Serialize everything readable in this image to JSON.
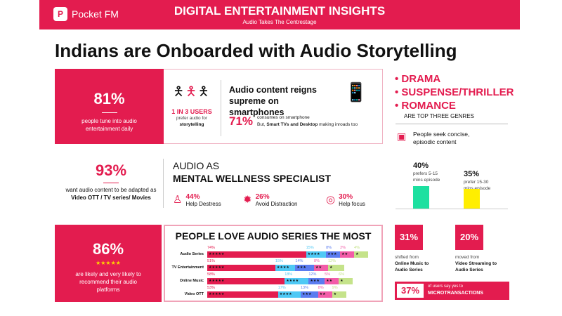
{
  "header": {
    "brand": "Pocket FM",
    "title": "DIGITAL ENTERTAINMENT INSIGHTS",
    "subtitle": "Audio Takes The Centrestage"
  },
  "page_title": "Indians are Onboarded with Audio Storytelling",
  "stat_daily": {
    "value": "81%",
    "text": "people tune into audio entertainment daily"
  },
  "users": {
    "value": "1 IN 3 USERS",
    "text1": "prefer audio for",
    "text2": "storytelling"
  },
  "smartphone": {
    "heading": "Audio content reigns supreme on smartphones",
    "value": "71%",
    "line1": "consumes on smartphone",
    "line2_pre": "But, ",
    "line2_bold": "Smart TVs and Desktop",
    "line2_post": " making inroads too"
  },
  "genres": {
    "items": [
      "DRAMA",
      "SUSPENSE/THRILLER",
      "ROMANCE"
    ],
    "caption": "ARE TOP THREE GENRES"
  },
  "episodic": {
    "text": "People seek concise, episodic content",
    "bars": [
      {
        "value": "40%",
        "pct": 40,
        "text": "prefers 5-15 mins episode",
        "color": "#1de0a0"
      },
      {
        "value": "35%",
        "pct": 35,
        "text": "prefer 15-30 mins episode",
        "color": "#ffee00"
      }
    ]
  },
  "adapt": {
    "value": "93%",
    "text_pre": "want audio content to be adapted as ",
    "text_bold": "Video OTT / TV series/ Movies"
  },
  "wellness": {
    "line1": "AUDIO AS",
    "line2": "MENTAL WELLNESS SPECIALIST",
    "items": [
      {
        "value": "44%",
        "label": "Help Destress",
        "icon": "meditation-icon"
      },
      {
        "value": "26%",
        "label": "Avoid Distraction",
        "icon": "distraction-icon"
      },
      {
        "value": "30%",
        "label": "Help focus",
        "icon": "target-icon"
      }
    ]
  },
  "recommend": {
    "value": "86%",
    "stars": "★★★★★",
    "text": "are likely and very likely to recommend their audio platforms"
  },
  "chart_data": {
    "type": "bar",
    "stacked": true,
    "orientation": "horizontal",
    "title": "PEOPLE LOVE AUDIO SERIES THE MOST",
    "categories": [
      "Audio Series",
      "TV Entertainment",
      "Online Music",
      "Video OTT"
    ],
    "series": [
      {
        "name": "★★★★★",
        "color": "#e31c4f",
        "values": [
          74,
          51,
          58,
          53
        ]
      },
      {
        "name": "★★★★",
        "color": "#4fc9f5",
        "values": [
          15,
          15,
          18,
          17
        ]
      },
      {
        "name": "★★★",
        "color": "#5b7cf0",
        "values": [
          8,
          14,
          12,
          13
        ]
      },
      {
        "name": "★★",
        "color": "#f25ca8",
        "values": [
          2,
          8,
          5,
          8
        ]
      },
      {
        "name": "★",
        "color": "#c5e38a",
        "values": [
          4,
          12,
          6,
          9
        ]
      }
    ]
  },
  "shift": [
    {
      "value": "31%",
      "pre": "shifted from",
      "bold": "Online Music to Audio Series"
    },
    {
      "value": "20%",
      "pre": "moved from",
      "bold": "Video Streaming to Audio Series"
    }
  ],
  "micro": {
    "value": "37%",
    "pre": "of users say yes to",
    "bold": "MICROTRANSACTIONS"
  }
}
